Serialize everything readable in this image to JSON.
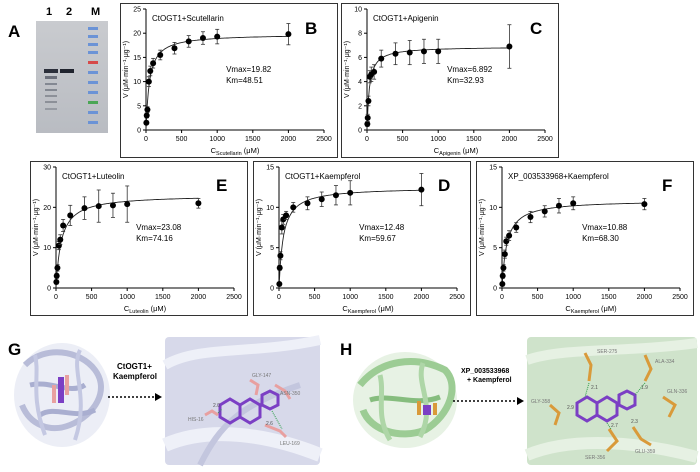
{
  "panel_letters": {
    "A": "A",
    "B": "B",
    "C": "C",
    "D": "D",
    "E": "E",
    "F": "F",
    "G": "G",
    "H": "H"
  },
  "gel": {
    "lanes": [
      "1",
      "2",
      "M"
    ]
  },
  "chart_data": [
    {
      "id": "B",
      "type": "scatter",
      "title": "CtOGT1+Scutellarin",
      "xlabel_main": "C",
      "xlabel_sub": "Scutellarin",
      "xlabel_unit": " (μM)",
      "ylabel": "V (μM·min⁻¹·μg⁻¹)",
      "xlim": [
        0,
        2500
      ],
      "ylim": [
        0,
        25
      ],
      "xticks": [
        0,
        500,
        1000,
        1500,
        2000,
        2500
      ],
      "yticks": [
        0,
        5,
        10,
        15,
        20,
        25
      ],
      "vmax_label": "Vmax=19.82",
      "km_label": "Km=48.51",
      "vmax": 19.82,
      "km": 48.51,
      "x": [
        5,
        10,
        20,
        40,
        60,
        100,
        200,
        400,
        600,
        800,
        1000,
        2000
      ],
      "y": [
        1.5,
        3,
        4.2,
        10,
        12.2,
        13.8,
        15.5,
        16.9,
        18.3,
        19,
        19.3,
        19.8
      ],
      "err": [
        0.4,
        0.5,
        0.6,
        1,
        1,
        1,
        1,
        1.2,
        1.2,
        1.3,
        1.5,
        2.2
      ]
    },
    {
      "id": "C",
      "type": "scatter",
      "title": "CtOGT1+Apigenin",
      "xlabel_main": "C",
      "xlabel_sub": "Apigenin",
      "xlabel_unit": " (μM)",
      "ylabel": "V (μM·min⁻¹·μg⁻¹)",
      "xlim": [
        0,
        2500
      ],
      "ylim": [
        0,
        10
      ],
      "xticks": [
        0,
        500,
        1000,
        1500,
        2000,
        2500
      ],
      "yticks": [
        0,
        2,
        4,
        6,
        8,
        10
      ],
      "vmax_label": "Vmax=6.892",
      "km_label": "Km=32.93",
      "vmax": 6.892,
      "km": 32.93,
      "x": [
        5,
        10,
        20,
        40,
        60,
        100,
        200,
        400,
        600,
        800,
        1000,
        2000
      ],
      "y": [
        0.5,
        1,
        2.4,
        4.4,
        4.6,
        4.8,
        5.9,
        6.3,
        6.4,
        6.5,
        6.5,
        6.9
      ],
      "err": [
        0.2,
        0.3,
        0.4,
        0.5,
        0.6,
        0.6,
        0.7,
        0.9,
        1,
        1,
        1,
        1.8
      ]
    },
    {
      "id": "E",
      "type": "scatter",
      "title": "CtOGT1+Luteolin",
      "xlabel_main": "C",
      "xlabel_sub": "Luteolin",
      "xlabel_unit": " (μM)",
      "ylabel": "V (μM·min⁻¹·μg⁻¹)",
      "xlim": [
        0,
        2500
      ],
      "ylim": [
        0,
        30
      ],
      "xticks": [
        0,
        500,
        1000,
        1500,
        2000,
        2500
      ],
      "yticks": [
        0,
        10,
        20,
        30
      ],
      "vmax_label": "Vmax=23.08",
      "km_label": "Km=74.16",
      "vmax": 23.08,
      "km": 74.16,
      "x": [
        5,
        10,
        20,
        40,
        60,
        100,
        200,
        400,
        600,
        800,
        1000,
        2000
      ],
      "y": [
        1.5,
        3,
        5,
        10.5,
        12,
        15.5,
        18,
        19.8,
        20.3,
        20.5,
        20.8,
        21
      ],
      "err": [
        0.5,
        0.6,
        0.8,
        1,
        1.2,
        1.5,
        2.5,
        2.8,
        4,
        3,
        4.5,
        1.2
      ]
    },
    {
      "id": "D",
      "type": "scatter",
      "title": "CtOGT1+Kaempferol",
      "xlabel_main": "C",
      "xlabel_sub": "Kaempferol",
      "xlabel_unit": " (μM)",
      "ylabel": "V (μM·min⁻¹·μg⁻¹)",
      "xlim": [
        0,
        2500
      ],
      "ylim": [
        0,
        15
      ],
      "xticks": [
        0,
        500,
        1000,
        1500,
        2000,
        2500
      ],
      "yticks": [
        0,
        5,
        10,
        15
      ],
      "vmax_label": "Vmax=12.48",
      "km_label": "Km=59.67",
      "vmax": 12.48,
      "km": 59.67,
      "x": [
        5,
        10,
        20,
        40,
        60,
        100,
        200,
        400,
        600,
        800,
        1000,
        2000
      ],
      "y": [
        0.5,
        2.5,
        4,
        7.5,
        8.5,
        9,
        10,
        10.5,
        11,
        11.5,
        11.8,
        12.2
      ],
      "err": [
        0.2,
        0.3,
        0.5,
        0.8,
        0.6,
        0.5,
        0.6,
        0.8,
        0.9,
        1.2,
        1.5,
        2
      ]
    },
    {
      "id": "F",
      "type": "scatter",
      "title": "XP_003533968+Kaempferol",
      "xlabel_main": "C",
      "xlabel_sub": "Kaempferol",
      "xlabel_unit": " (μM)",
      "ylabel": "V (μM·min⁻¹·μg⁻¹)",
      "xlim": [
        0,
        2500
      ],
      "ylim": [
        0,
        15
      ],
      "xticks": [
        0,
        500,
        1000,
        1500,
        2000,
        2500
      ],
      "yticks": [
        0,
        5,
        10,
        15
      ],
      "vmax_label": "Vmax=10.88",
      "km_label": "Km=68.30",
      "vmax": 10.88,
      "km": 68.3,
      "x": [
        5,
        10,
        20,
        40,
        60,
        100,
        200,
        400,
        600,
        800,
        1000,
        2000
      ],
      "y": [
        0.5,
        1.5,
        2.5,
        4.2,
        5.8,
        6.5,
        7.5,
        8.8,
        9.5,
        10.2,
        10.5,
        10.4
      ],
      "err": [
        0.2,
        0.3,
        0.4,
        0.5,
        0.5,
        0.6,
        0.6,
        0.7,
        0.7,
        0.9,
        0.8,
        0.7
      ]
    }
  ],
  "structures": {
    "G": {
      "arrow_label_1": "CtOGT1+",
      "arrow_label_2": "Kaempferol",
      "residues": [
        "GLY-147",
        "ASN-350",
        "HIS-16",
        "LEU-169"
      ],
      "bond_lengths": [
        "2.0",
        "2.6"
      ],
      "colors": {
        "protein": "#c9cce6",
        "ligand": "#7b3fc4",
        "residue": "#e8a0a0",
        "bg": "#d7d9ea"
      }
    },
    "H": {
      "arrow_label_1": "XP_003533968",
      "arrow_label_2": "+ Kaempferol",
      "residues": [
        "SER-275",
        "ALA-334",
        "GLN-336",
        "GLU-359",
        "SER-356",
        "GLY-358"
      ],
      "bond_lengths": [
        "2.1",
        "1.9",
        "2.9",
        "2.7",
        "2.3"
      ],
      "colors": {
        "protein": "#9ccc94",
        "ligand": "#7b3fc4",
        "residue": "#d99a3a",
        "bg": "#cfe3cb"
      }
    }
  }
}
